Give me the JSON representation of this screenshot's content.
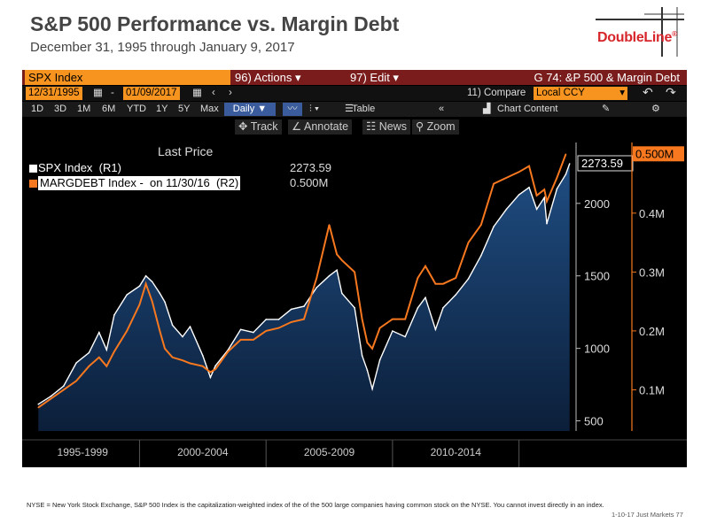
{
  "slide": {
    "title": "S&P 500 Performance vs. Margin Debt",
    "subtitle": "December 31, 1995 through January 9, 2017",
    "logo_text": "DoubleLine",
    "logo_reg": "®",
    "footnote": "NYSE = New York Stock Exchange, S&P 500 Index is the capitalization-weighted index of the of the 500 large companies having common stock on the NYSE. You cannot invest directly in an index.",
    "page_info": "1-10-17 Just Markets  77"
  },
  "terminal": {
    "security": "SPX Index",
    "menu_actions": "96) Actions",
    "menu_edit": "97) Edit",
    "graph_title": "G 74: &P 500 & Margin Debt",
    "start_date": "12/31/1995",
    "end_date": "01/09/2017",
    "dash": "-",
    "compare_label": "11) Compare",
    "currency": "Local CCY",
    "ranges": [
      "1D",
      "3D",
      "1M",
      "6M",
      "YTD",
      "1Y",
      "5Y",
      "Max"
    ],
    "period": "Daily ▼",
    "table_label": "Table",
    "chart_content_label": "Chart Content",
    "tools": {
      "track": "Track",
      "annotate": "Annotate",
      "news": "News",
      "zoom": "Zoom"
    },
    "colors": {
      "bar": "#7a1c1c",
      "orange": "#f79420",
      "selected": "#3a5c9c"
    }
  },
  "legend": {
    "title": "Last Price",
    "items": [
      {
        "name": "SPX Index  (R1)",
        "value": "2273.59",
        "color": "#ffffff"
      },
      {
        "name": "MARGDEBT Index -  on 11/30/16  (R2)",
        "value": "0.500M",
        "color": "#f7781e"
      }
    ]
  },
  "chart_data": {
    "type": "area",
    "x_ticks": [
      "1995-1999",
      "2000-2004",
      "2005-2009",
      "2010-2014"
    ],
    "current_labels": {
      "spx": "2273.59",
      "margin": "0.500M"
    },
    "y_right1": {
      "ticks": [
        500,
        1000,
        1500,
        2000
      ],
      "labels": [
        "500",
        "1000",
        "1500",
        "2000"
      ],
      "range": [
        430,
        2420
      ]
    },
    "y_right2": {
      "ticks": [
        0.1,
        0.2,
        0.3,
        0.4
      ],
      "labels": [
        "0.1M",
        "0.2M",
        "0.3M",
        "0.4M"
      ],
      "range": [
        0.03,
        0.52
      ]
    },
    "series": [
      {
        "name": "SPX Index  (R1)",
        "color": "#ffffff",
        "x": [
          1996.0,
          1996.5,
          1997.0,
          1997.5,
          1998.0,
          1998.4,
          1998.7,
          1999.0,
          1999.5,
          2000.0,
          2000.25,
          2000.5,
          2000.8,
          2001.0,
          2001.3,
          2001.7,
          2002.0,
          2002.5,
          2002.8,
          2003.0,
          2003.5,
          2004.0,
          2004.5,
          2005.0,
          2005.5,
          2006.0,
          2006.5,
          2007.0,
          2007.5,
          2007.8,
          2008.0,
          2008.5,
          2008.8,
          2009.0,
          2009.2,
          2009.5,
          2010.0,
          2010.5,
          2011.0,
          2011.3,
          2011.7,
          2012.0,
          2012.5,
          2013.0,
          2013.5,
          2014.0,
          2014.5,
          2015.0,
          2015.4,
          2015.7,
          2016.0,
          2016.1,
          2016.5,
          2016.85,
          2017.0
        ],
        "values": [
          615,
          670,
          740,
          900,
          970,
          1110,
          990,
          1230,
          1370,
          1430,
          1500,
          1460,
          1380,
          1320,
          1160,
          1080,
          1150,
          950,
          800,
          880,
          990,
          1130,
          1110,
          1200,
          1200,
          1270,
          1290,
          1420,
          1500,
          1540,
          1380,
          1280,
          950,
          850,
          720,
          920,
          1120,
          1080,
          1280,
          1350,
          1130,
          1280,
          1370,
          1480,
          1640,
          1840,
          1960,
          2060,
          2110,
          1960,
          2040,
          1860,
          2100,
          2200,
          2273.59
        ]
      },
      {
        "name": "MARGDEBT Index -  on 11/30/16  (R2)",
        "color": "#f7781e",
        "x": [
          1996.0,
          1996.5,
          1997.0,
          1997.5,
          1998.0,
          1998.4,
          1998.7,
          1999.0,
          1999.5,
          2000.0,
          2000.25,
          2000.5,
          2000.8,
          2001.0,
          2001.3,
          2001.7,
          2002.0,
          2002.5,
          2002.8,
          2003.0,
          2003.5,
          2004.0,
          2004.5,
          2005.0,
          2005.5,
          2006.0,
          2006.5,
          2007.0,
          2007.5,
          2007.8,
          2008.0,
          2008.5,
          2008.8,
          2009.0,
          2009.2,
          2009.5,
          2010.0,
          2010.5,
          2011.0,
          2011.3,
          2011.7,
          2012.0,
          2012.5,
          2013.0,
          2013.5,
          2014.0,
          2014.5,
          2015.0,
          2015.4,
          2015.7,
          2016.0,
          2016.1,
          2016.5,
          2016.85
        ],
        "values": [
          0.07,
          0.085,
          0.1,
          0.115,
          0.14,
          0.155,
          0.14,
          0.165,
          0.2,
          0.245,
          0.28,
          0.25,
          0.2,
          0.17,
          0.155,
          0.15,
          0.145,
          0.14,
          0.13,
          0.135,
          0.165,
          0.185,
          0.185,
          0.2,
          0.205,
          0.215,
          0.22,
          0.29,
          0.38,
          0.33,
          0.32,
          0.3,
          0.22,
          0.18,
          0.17,
          0.205,
          0.22,
          0.22,
          0.29,
          0.31,
          0.28,
          0.28,
          0.29,
          0.35,
          0.38,
          0.45,
          0.46,
          0.47,
          0.48,
          0.43,
          0.44,
          0.42,
          0.46,
          0.5
        ]
      }
    ]
  }
}
